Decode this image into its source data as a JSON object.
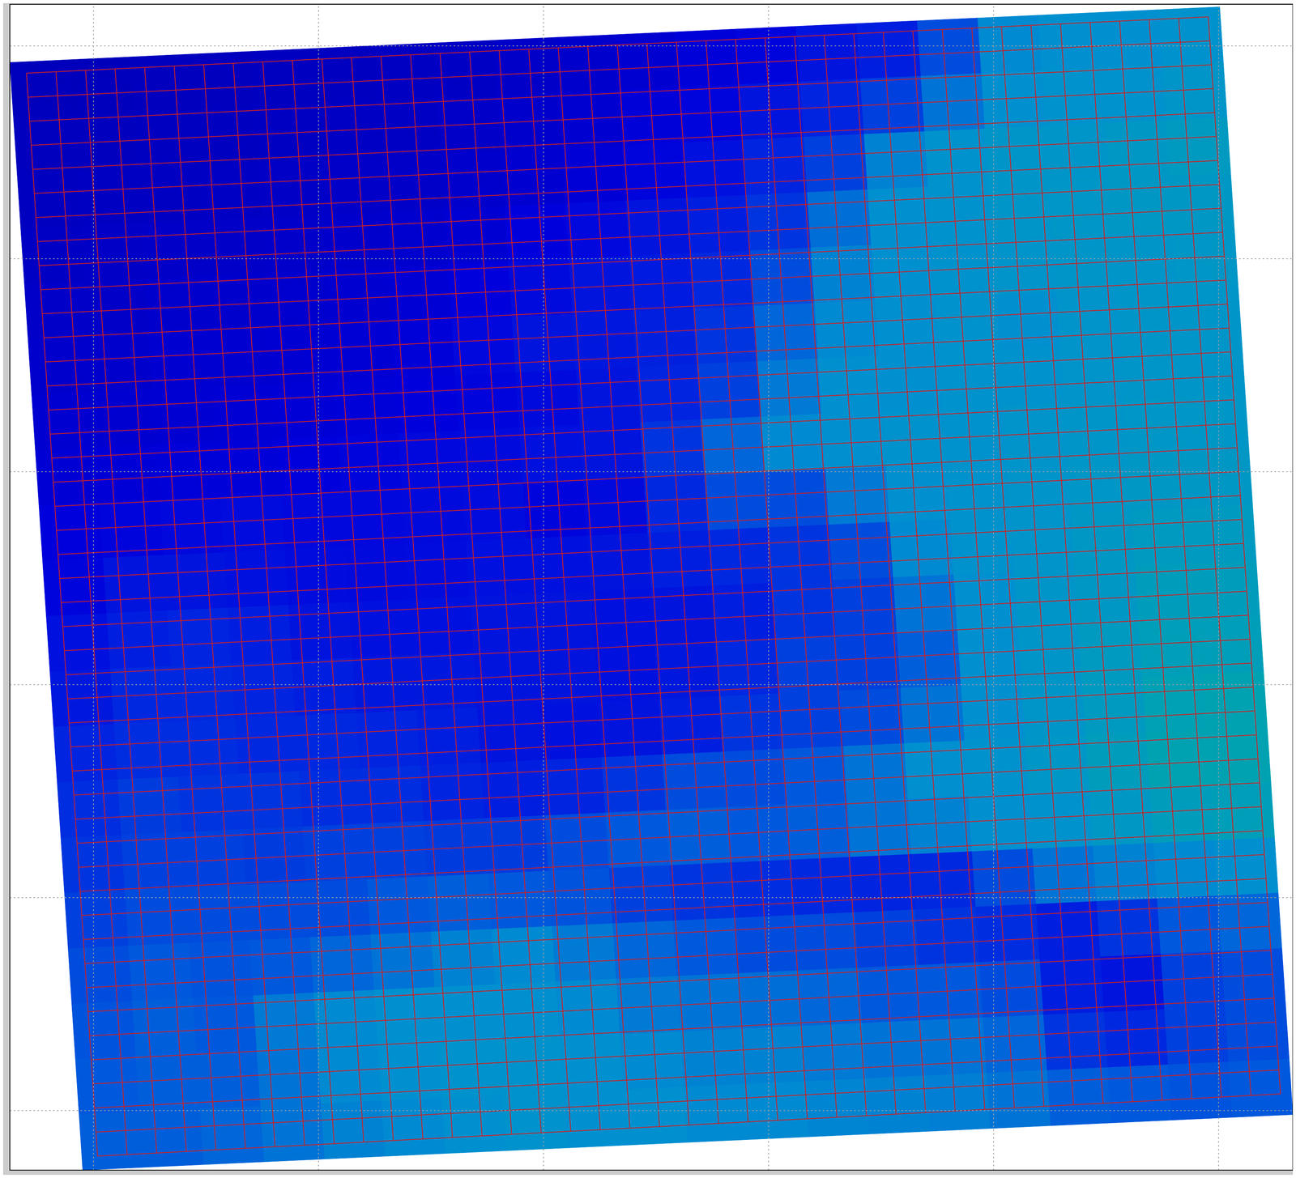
{
  "chart_data": {
    "type": "heatmap",
    "xlim": [
      -0.372,
      5.33
    ],
    "ylim": [
      -0.28,
      5.195
    ],
    "xticks": [
      0,
      1,
      2,
      3,
      4,
      5
    ],
    "yticks": [
      0,
      1,
      2,
      3,
      4,
      5
    ],
    "grid": true,
    "tick_labels": false,
    "zlim": [
      0,
      1
    ],
    "cells": {
      "corners": [
        [
          -0.372,
          4.922
        ],
        [
          5.005,
          5.183
        ],
        [
          5.33,
          -0.019
        ],
        [
          -0.048,
          -0.28
        ]
      ],
      "values": [
        [
          0.04,
          0.04,
          0.05,
          0.05,
          0.06,
          0.06,
          0.07,
          0.08,
          0.1,
          0.12,
          0.14,
          0.18,
          0.22,
          0.3,
          0.35,
          0.55,
          0.78,
          0.8,
          0.8,
          0.82
        ],
        [
          0.05,
          0.05,
          0.06,
          0.06,
          0.07,
          0.08,
          0.08,
          0.1,
          0.12,
          0.14,
          0.18,
          0.22,
          0.3,
          0.38,
          0.5,
          0.7,
          0.8,
          0.82,
          0.82,
          0.84
        ],
        [
          0.06,
          0.07,
          0.07,
          0.08,
          0.09,
          0.1,
          0.1,
          0.12,
          0.14,
          0.17,
          0.22,
          0.28,
          0.38,
          0.5,
          0.75,
          0.82,
          0.84,
          0.84,
          0.86,
          0.88
        ],
        [
          0.08,
          0.09,
          0.1,
          0.1,
          0.11,
          0.12,
          0.13,
          0.15,
          0.2,
          0.24,
          0.3,
          0.35,
          0.45,
          0.68,
          0.8,
          0.82,
          0.84,
          0.85,
          0.86,
          0.86
        ],
        [
          0.1,
          0.1,
          0.12,
          0.12,
          0.13,
          0.14,
          0.16,
          0.2,
          0.25,
          0.3,
          0.33,
          0.4,
          0.55,
          0.75,
          0.8,
          0.82,
          0.83,
          0.84,
          0.84,
          0.85
        ],
        [
          0.12,
          0.12,
          0.14,
          0.14,
          0.15,
          0.16,
          0.18,
          0.24,
          0.3,
          0.32,
          0.36,
          0.45,
          0.65,
          0.78,
          0.8,
          0.82,
          0.8,
          0.83,
          0.84,
          0.84
        ],
        [
          0.14,
          0.14,
          0.15,
          0.16,
          0.17,
          0.18,
          0.2,
          0.22,
          0.25,
          0.3,
          0.38,
          0.5,
          0.72,
          0.8,
          0.8,
          0.82,
          0.82,
          0.83,
          0.84,
          0.84
        ],
        [
          0.16,
          0.17,
          0.18,
          0.18,
          0.2,
          0.22,
          0.24,
          0.25,
          0.28,
          0.3,
          0.45,
          0.65,
          0.78,
          0.8,
          0.82,
          0.82,
          0.83,
          0.84,
          0.85,
          0.85
        ],
        [
          0.2,
          0.22,
          0.24,
          0.26,
          0.24,
          0.24,
          0.25,
          0.26,
          0.22,
          0.25,
          0.4,
          0.55,
          0.55,
          0.72,
          0.8,
          0.82,
          0.83,
          0.85,
          0.86,
          0.86
        ],
        [
          0.22,
          0.3,
          0.3,
          0.28,
          0.26,
          0.25,
          0.26,
          0.28,
          0.28,
          0.3,
          0.35,
          0.4,
          0.45,
          0.55,
          0.78,
          0.82,
          0.83,
          0.86,
          0.88,
          0.88
        ],
        [
          0.28,
          0.35,
          0.38,
          0.35,
          0.3,
          0.28,
          0.28,
          0.3,
          0.3,
          0.28,
          0.3,
          0.35,
          0.45,
          0.5,
          0.7,
          0.8,
          0.84,
          0.86,
          0.9,
          0.9
        ],
        [
          0.32,
          0.4,
          0.4,
          0.38,
          0.35,
          0.32,
          0.32,
          0.3,
          0.3,
          0.28,
          0.32,
          0.4,
          0.5,
          0.5,
          0.62,
          0.8,
          0.84,
          0.88,
          0.92,
          0.92
        ],
        [
          0.38,
          0.42,
          0.42,
          0.4,
          0.4,
          0.38,
          0.35,
          0.3,
          0.28,
          0.3,
          0.35,
          0.45,
          0.5,
          0.55,
          0.7,
          0.8,
          0.84,
          0.88,
          0.94,
          0.95
        ],
        [
          0.42,
          0.48,
          0.45,
          0.45,
          0.42,
          0.42,
          0.38,
          0.35,
          0.38,
          0.45,
          0.55,
          0.55,
          0.6,
          0.7,
          0.8,
          0.82,
          0.85,
          0.9,
          0.95,
          0.95
        ],
        [
          0.45,
          0.5,
          0.5,
          0.48,
          0.5,
          0.5,
          0.48,
          0.48,
          0.55,
          0.6,
          0.62,
          0.6,
          0.62,
          0.7,
          0.75,
          0.8,
          0.82,
          0.86,
          0.9,
          0.92
        ],
        [
          0.5,
          0.55,
          0.55,
          0.55,
          0.55,
          0.6,
          0.62,
          0.6,
          0.58,
          0.5,
          0.45,
          0.42,
          0.4,
          0.38,
          0.4,
          0.55,
          0.7,
          0.75,
          0.78,
          0.8
        ],
        [
          0.55,
          0.6,
          0.58,
          0.6,
          0.65,
          0.7,
          0.75,
          0.78,
          0.72,
          0.65,
          0.6,
          0.55,
          0.55,
          0.5,
          0.45,
          0.42,
          0.35,
          0.45,
          0.6,
          0.65
        ],
        [
          0.58,
          0.62,
          0.6,
          0.72,
          0.78,
          0.8,
          0.8,
          0.8,
          0.78,
          0.72,
          0.7,
          0.68,
          0.65,
          0.6,
          0.6,
          0.55,
          0.35,
          0.3,
          0.5,
          0.55
        ],
        [
          0.6,
          0.62,
          0.62,
          0.7,
          0.78,
          0.8,
          0.82,
          0.82,
          0.8,
          0.78,
          0.75,
          0.75,
          0.72,
          0.7,
          0.7,
          0.65,
          0.45,
          0.4,
          0.5,
          0.55
        ],
        [
          0.62,
          0.62,
          0.65,
          0.7,
          0.75,
          0.78,
          0.8,
          0.82,
          0.8,
          0.8,
          0.78,
          0.78,
          0.76,
          0.75,
          0.74,
          0.7,
          0.62,
          0.6,
          0.58,
          0.6
        ]
      ]
    },
    "mesh": {
      "corners": [
        [
          -0.298,
          4.872
        ],
        [
          4.954,
          5.136
        ],
        [
          5.275,
          0.078
        ],
        [
          0.018,
          -0.214
        ]
      ],
      "rows": 45,
      "cols": 40
    }
  }
}
